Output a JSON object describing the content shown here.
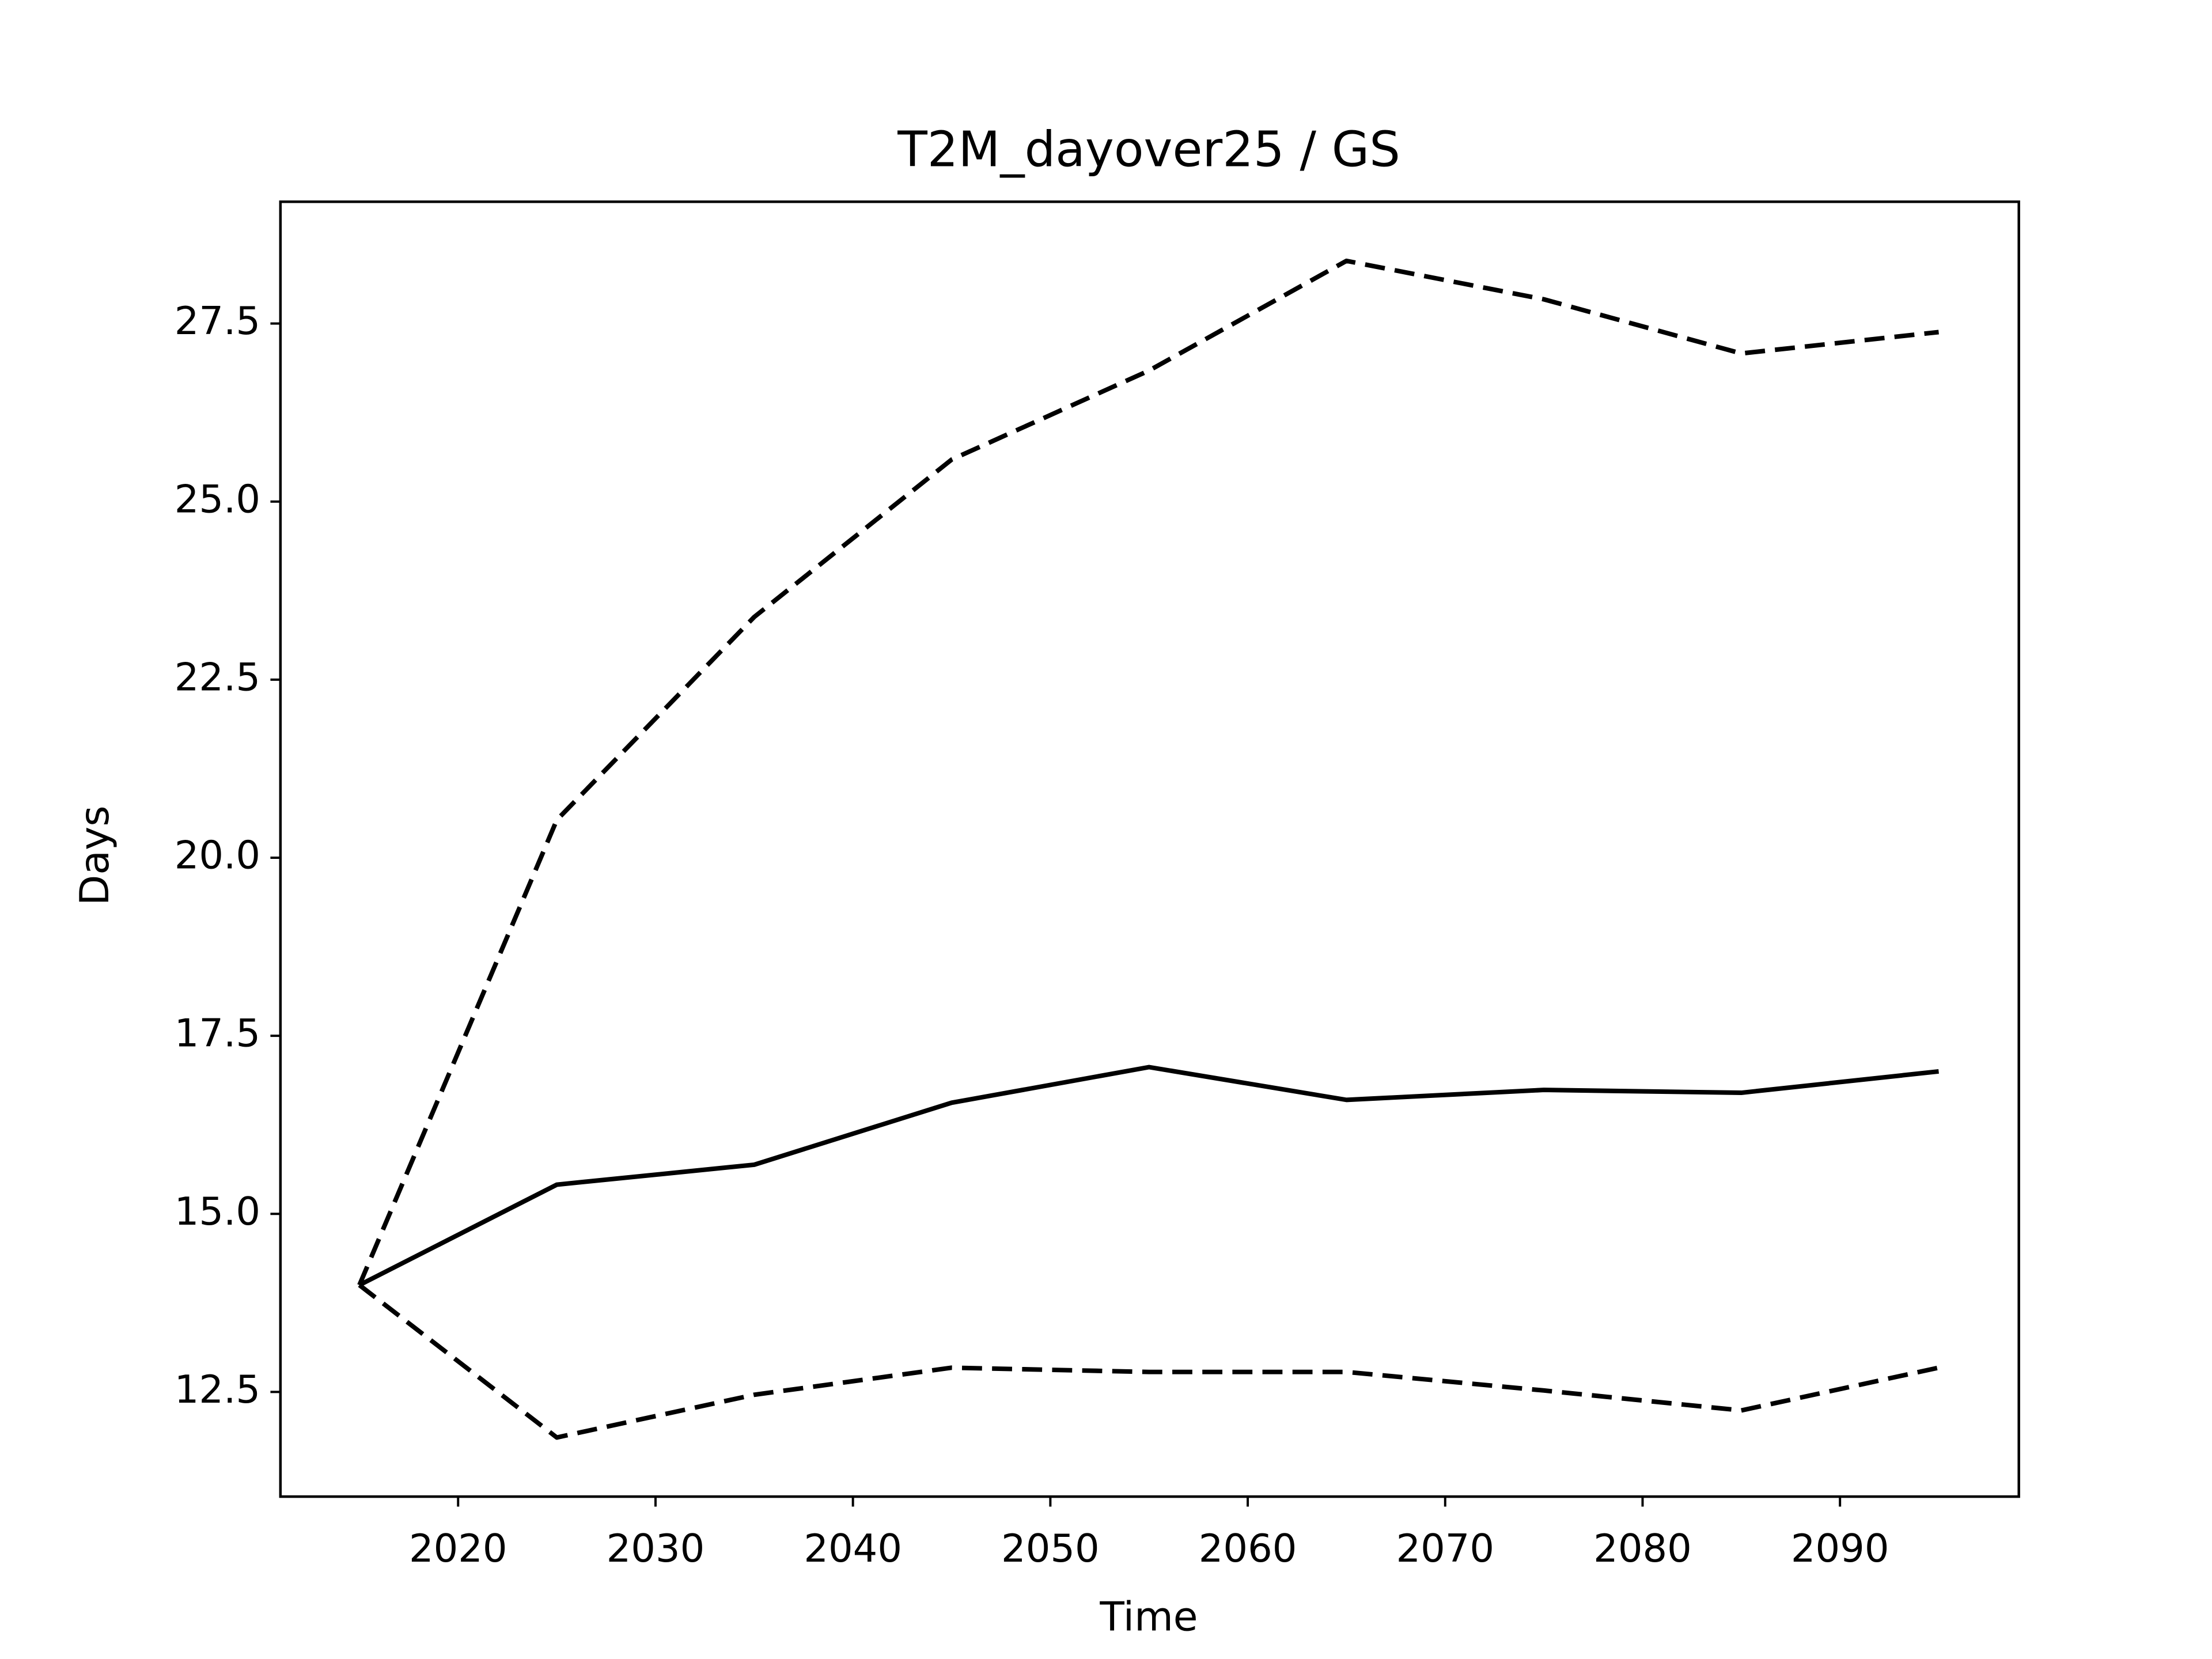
{
  "chart_data": {
    "type": "line",
    "title": "T2M_dayover25 / GS",
    "x_label": "Time",
    "y_label": "Days",
    "x": [
      2015,
      2025,
      2035,
      2045,
      2055,
      2065,
      2075,
      2085,
      2095
    ],
    "series": [
      {
        "color": "#000000",
        "linestyle": "solid",
        "values": [
          14.0,
          15.41,
          15.69,
          16.56,
          17.06,
          16.6,
          16.74,
          16.7,
          17.0
        ]
      },
      {
        "color": "#000000",
        "linestyle": "dashed",
        "values": [
          14.0,
          20.53,
          23.38,
          25.59,
          26.84,
          28.38,
          27.84,
          27.08,
          27.38
        ]
      },
      {
        "color": "#000000",
        "linestyle": "dashed",
        "values": [
          14.0,
          11.86,
          12.46,
          12.84,
          12.78,
          12.78,
          12.52,
          12.24,
          12.84
        ]
      }
    ],
    "xlim": [
      2011.0,
      2099.06
    ],
    "ylim": [
      11.03,
      29.21
    ],
    "xticks": [
      2020,
      2030,
      2040,
      2050,
      2060,
      2070,
      2080,
      2090
    ],
    "yticks": [
      12.5,
      {
        "value": 15,
        "label": "15.0"
      },
      17.5,
      {
        "value": 20,
        "label": "20.0"
      },
      22.5,
      {
        "value": 25,
        "label": "25.0"
      },
      27.5
    ],
    "grid": false
  }
}
